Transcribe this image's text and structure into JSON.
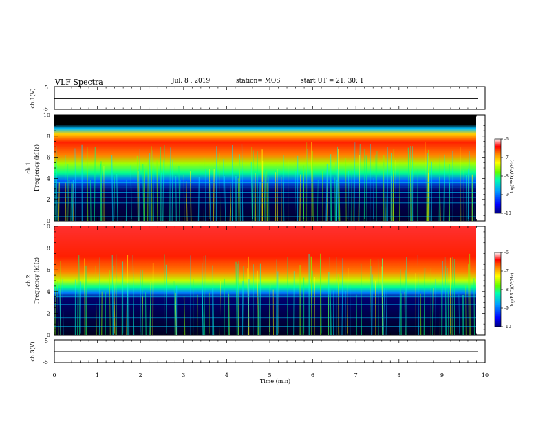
{
  "header": {
    "title": "VLF Spectra",
    "date": "Jul. 8 , 2019",
    "station": "station= MOS",
    "start": "start UT = 21: 30: 1"
  },
  "chart_data": [
    {
      "type": "line",
      "panel": "ch1-waveform",
      "ylabel": "ch.1(V)",
      "ylim": [
        -5,
        5
      ],
      "yticks": [
        "5",
        "-5"
      ],
      "x": [
        0,
        9.83
      ],
      "values": [
        -0.2,
        -0.2
      ]
    },
    {
      "type": "heatmap",
      "panel": "ch1-spectrogram",
      "ylabel": "ch.1\nFrequency (kHz)",
      "ylim": [
        0,
        10
      ],
      "yticks": [
        "0",
        "2",
        "4",
        "6",
        "8",
        "10"
      ],
      "x_range": [
        0,
        9.83
      ],
      "colorbar": {
        "label": "log(PSD)(V²/Hz)",
        "ticks": [
          "-6",
          "-7",
          "-8",
          "-9",
          "-10"
        ],
        "range": [
          -10,
          -6
        ]
      }
    },
    {
      "type": "heatmap",
      "panel": "ch2-spectrogram",
      "ylabel": "ch.2\nFrequency (kHz)",
      "ylim": [
        0,
        10
      ],
      "yticks": [
        "0",
        "2",
        "4",
        "6",
        "8",
        "10"
      ],
      "x_range": [
        0,
        9.83
      ],
      "colorbar": {
        "label": "log(PSD)(V²/Hz)",
        "ticks": [
          "-6",
          "-7",
          "-8",
          "-9",
          "-10"
        ],
        "range": [
          -10,
          -6
        ]
      }
    },
    {
      "type": "line",
      "panel": "ch3-waveform",
      "ylabel": "ch.3(V)",
      "ylim": [
        -5,
        5
      ],
      "yticks": [
        "5",
        "-5"
      ],
      "x": [
        0,
        9.83
      ],
      "values": [
        -0.2,
        -0.2
      ]
    }
  ],
  "x_axis": {
    "label": "Time (min)",
    "xlim": [
      0,
      10
    ],
    "ticks": [
      "0",
      "1",
      "2",
      "3",
      "4",
      "5",
      "6",
      "7",
      "8",
      "9",
      "10"
    ]
  }
}
